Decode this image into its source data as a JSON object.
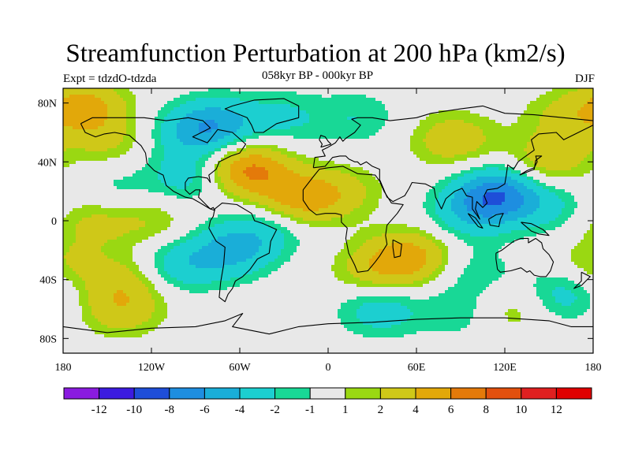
{
  "chart_data": {
    "type": "heatmap",
    "title": "Streamfunction Perturbation at 200 hPa (km2/s)",
    "left_label": "Expt = tdzdO-tdzda",
    "subtitle": "058kyr BP - 000kyr BP",
    "right_label": "DJF",
    "x_ticks": [
      "180",
      "120W",
      "60W",
      "0",
      "60E",
      "120E",
      "180"
    ],
    "x_tick_lons": [
      -180,
      -120,
      -60,
      0,
      60,
      120,
      180
    ],
    "y_ticks": [
      "80N",
      "40N",
      "0",
      "40S",
      "80S"
    ],
    "y_tick_lats": [
      80,
      40,
      0,
      -40,
      -80
    ],
    "xlim": [
      -180,
      180
    ],
    "ylim": [
      -90,
      90
    ],
    "colorbar": {
      "labels": [
        "-12",
        "-10",
        "-8",
        "-6",
        "-4",
        "-2",
        "-1",
        "1",
        "2",
        "4",
        "6",
        "8",
        "10",
        "12"
      ],
      "colors": [
        "#8a1be0",
        "#3c1be0",
        "#1e4ed8",
        "#1e8ee0",
        "#1aaed8",
        "#1ccfd0",
        "#18d896",
        "#e8e8e8",
        "#9ad812",
        "#cfc818",
        "#e2a80a",
        "#e47a0a",
        "#e2500e",
        "#e02020",
        "#e00000"
      ]
    },
    "anomalies": [
      {
        "lon": -165,
        "lat": 78,
        "value": 4.5
      },
      {
        "lon": -150,
        "lat": 55,
        "value": 2.2
      },
      {
        "lon": -145,
        "lat": 20,
        "value": -1.6
      },
      {
        "lon": -160,
        "lat": 0,
        "value": 2.4
      },
      {
        "lon": -120,
        "lat": 0,
        "value": 2.0
      },
      {
        "lon": -95,
        "lat": 60,
        "value": -2.6
      },
      {
        "lon": -75,
        "lat": 65,
        "value": -4.6
      },
      {
        "lon": -95,
        "lat": 30,
        "value": -3.0
      },
      {
        "lon": -55,
        "lat": 35,
        "value": 6.5
      },
      {
        "lon": -30,
        "lat": 70,
        "value": -2.2
      },
      {
        "lon": 20,
        "lat": 70,
        "value": -1.9
      },
      {
        "lon": -20,
        "lat": 15,
        "value": 5.0
      },
      {
        "lon": 10,
        "lat": 20,
        "value": 2.2
      },
      {
        "lon": -65,
        "lat": -20,
        "value": -4.2
      },
      {
        "lon": -100,
        "lat": -30,
        "value": -3.2
      },
      {
        "lon": -40,
        "lat": -5,
        "value": -2.4
      },
      {
        "lon": -140,
        "lat": -40,
        "value": 2.4
      },
      {
        "lon": -140,
        "lat": -60,
        "value": 3.2
      },
      {
        "lon": 55,
        "lat": -25,
        "value": 5.0
      },
      {
        "lon": 30,
        "lat": -35,
        "value": 2.5
      },
      {
        "lon": 35,
        "lat": -60,
        "value": -3.2
      },
      {
        "lon": 90,
        "lat": -62,
        "value": -1.8
      },
      {
        "lon": 115,
        "lat": 18,
        "value": -7.0
      },
      {
        "lon": 95,
        "lat": 5,
        "value": -3.0
      },
      {
        "lon": 150,
        "lat": 10,
        "value": -2.2
      },
      {
        "lon": 85,
        "lat": 55,
        "value": 3.4
      },
      {
        "lon": 150,
        "lat": 40,
        "value": 3.3
      },
      {
        "lon": 160,
        "lat": 70,
        "value": 2.2
      },
      {
        "lon": 100,
        "lat": -35,
        "value": -1.7
      },
      {
        "lon": 160,
        "lat": -50,
        "value": -3.0
      },
      {
        "lon": 125,
        "lat": -60,
        "value": 2.0
      },
      {
        "lon": 180,
        "lat": -30,
        "value": 2.0
      }
    ],
    "coastlines": [
      [
        [
          -168,
          66
        ],
        [
          -160,
          70
        ],
        [
          -140,
          70
        ],
        [
          -125,
          70
        ],
        [
          -110,
          68
        ],
        [
          -95,
          70
        ],
        [
          -85,
          68
        ],
        [
          -80,
          63
        ],
        [
          -92,
          57
        ],
        [
          -82,
          53
        ],
        [
          -78,
          58
        ],
        [
          -75,
          62
        ],
        [
          -65,
          60
        ],
        [
          -56,
          52
        ],
        [
          -60,
          46
        ],
        [
          -66,
          44
        ],
        [
          -70,
          42
        ],
        [
          -74,
          40
        ],
        [
          -76,
          35
        ],
        [
          -81,
          31
        ],
        [
          -80,
          26
        ],
        [
          -82,
          29
        ],
        [
          -88,
          30
        ],
        [
          -95,
          29
        ],
        [
          -97,
          26
        ],
        [
          -97,
          21
        ],
        [
          -94,
          18
        ],
        [
          -90,
          21
        ],
        [
          -87,
          21
        ],
        [
          -88,
          16
        ],
        [
          -83,
          11
        ],
        [
          -80,
          8
        ],
        [
          -78,
          9
        ],
        [
          -77,
          7
        ],
        [
          -80,
          8
        ],
        [
          -85,
          11
        ],
        [
          -92,
          15
        ],
        [
          -97,
          16
        ],
        [
          -105,
          20
        ],
        [
          -110,
          24
        ],
        [
          -112,
          31
        ],
        [
          -118,
          34
        ],
        [
          -123,
          39
        ],
        [
          -124,
          46
        ],
        [
          -127,
          51
        ],
        [
          -135,
          58
        ],
        [
          -145,
          60
        ],
        [
          -152,
          59
        ],
        [
          -158,
          57
        ],
        [
          -165,
          60
        ],
        [
          -168,
          66
        ]
      ],
      [
        [
          -77,
          8
        ],
        [
          -72,
          12
        ],
        [
          -62,
          11
        ],
        [
          -52,
          5
        ],
        [
          -50,
          0
        ],
        [
          -44,
          -2
        ],
        [
          -35,
          -6
        ],
        [
          -39,
          -14
        ],
        [
          -40,
          -22
        ],
        [
          -48,
          -26
        ],
        [
          -53,
          -33
        ],
        [
          -58,
          -38
        ],
        [
          -63,
          -41
        ],
        [
          -65,
          -46
        ],
        [
          -68,
          -50
        ],
        [
          -70,
          -55
        ],
        [
          -74,
          -52
        ],
        [
          -73,
          -42
        ],
        [
          -71,
          -30
        ],
        [
          -70,
          -18
        ],
        [
          -76,
          -14
        ],
        [
          -81,
          -5
        ],
        [
          -80,
          0
        ],
        [
          -78,
          3
        ],
        [
          -77,
          8
        ]
      ],
      [
        [
          -17,
          21
        ],
        [
          -10,
          30
        ],
        [
          -6,
          35
        ],
        [
          0,
          36
        ],
        [
          10,
          37
        ],
        [
          20,
          32
        ],
        [
          32,
          31
        ],
        [
          35,
          27
        ],
        [
          38,
          20
        ],
        [
          43,
          12
        ],
        [
          51,
          11
        ],
        [
          47,
          5
        ],
        [
          40,
          -3
        ],
        [
          39,
          -10
        ],
        [
          40,
          -16
        ],
        [
          35,
          -24
        ],
        [
          32,
          -28
        ],
        [
          27,
          -34
        ],
        [
          20,
          -35
        ],
        [
          18,
          -30
        ],
        [
          14,
          -22
        ],
        [
          12,
          -12
        ],
        [
          13,
          -5
        ],
        [
          9,
          -1
        ],
        [
          9,
          4
        ],
        [
          5,
          5
        ],
        [
          -2,
          5
        ],
        [
          -8,
          4
        ],
        [
          -13,
          8
        ],
        [
          -17,
          14
        ],
        [
          -17,
          21
        ]
      ],
      [
        [
          -10,
          36
        ],
        [
          -9,
          43
        ],
        [
          -2,
          44
        ],
        [
          -4,
          48
        ],
        [
          0,
          50
        ],
        [
          5,
          53
        ],
        [
          8,
          57
        ],
        [
          10,
          54
        ],
        [
          12,
          56
        ],
        [
          18,
          60
        ],
        [
          22,
          65
        ],
        [
          16,
          69
        ],
        [
          20,
          70
        ],
        [
          30,
          70
        ],
        [
          42,
          68
        ],
        [
          60,
          70
        ],
        [
          70,
          73
        ],
        [
          90,
          76
        ],
        [
          105,
          78
        ],
        [
          120,
          73
        ],
        [
          140,
          72
        ],
        [
          160,
          70
        ],
        [
          180,
          68
        ],
        [
          180,
          65
        ],
        [
          170,
          60
        ],
        [
          160,
          55
        ],
        [
          155,
          60
        ],
        [
          143,
          59
        ],
        [
          138,
          55
        ],
        [
          140,
          48
        ],
        [
          133,
          43
        ],
        [
          129,
          40
        ],
        [
          126,
          35
        ],
        [
          122,
          38
        ],
        [
          121,
          31
        ],
        [
          120,
          25
        ],
        [
          115,
          22
        ],
        [
          108,
          21
        ],
        [
          106,
          17
        ],
        [
          108,
          12
        ],
        [
          105,
          9
        ],
        [
          101,
          13
        ],
        [
          100,
          8
        ],
        [
          103,
          1
        ],
        [
          98,
          8
        ],
        [
          98,
          16
        ],
        [
          94,
          17
        ],
        [
          91,
          22
        ],
        [
          86,
          20
        ],
        [
          80,
          15
        ],
        [
          77,
          8
        ],
        [
          73,
          16
        ],
        [
          72,
          22
        ],
        [
          66,
          25
        ],
        [
          57,
          26
        ],
        [
          55,
          22
        ],
        [
          52,
          17
        ],
        [
          44,
          13
        ],
        [
          40,
          16
        ],
        [
          35,
          28
        ],
        [
          35,
          35
        ],
        [
          30,
          37
        ],
        [
          26,
          40
        ],
        [
          22,
          38
        ],
        [
          20,
          40
        ],
        [
          18,
          40
        ],
        [
          14,
          42
        ],
        [
          12,
          44
        ],
        [
          8,
          44
        ],
        [
          3,
          43
        ],
        [
          -2,
          37
        ],
        [
          -10,
          36
        ]
      ],
      [
        [
          114,
          -22
        ],
        [
          118,
          -20
        ],
        [
          126,
          -14
        ],
        [
          131,
          -12
        ],
        [
          136,
          -12
        ],
        [
          136,
          -15
        ],
        [
          141,
          -12
        ],
        [
          145,
          -15
        ],
        [
          146,
          -19
        ],
        [
          150,
          -23
        ],
        [
          153,
          -28
        ],
        [
          151,
          -34
        ],
        [
          148,
          -38
        ],
        [
          144,
          -38
        ],
        [
          140,
          -37
        ],
        [
          137,
          -34
        ],
        [
          135,
          -35
        ],
        [
          131,
          -32
        ],
        [
          124,
          -34
        ],
        [
          117,
          -35
        ],
        [
          115,
          -33
        ],
        [
          114,
          -26
        ],
        [
          114,
          -22
        ]
      ],
      [
        [
          -50,
          60
        ],
        [
          -44,
          60
        ],
        [
          -35,
          66
        ],
        [
          -20,
          70
        ],
        [
          -20,
          78
        ],
        [
          -30,
          83
        ],
        [
          -50,
          82
        ],
        [
          -65,
          78
        ],
        [
          -70,
          76
        ],
        [
          -55,
          70
        ],
        [
          -52,
          65
        ],
        [
          -50,
          60
        ]
      ],
      [
        [
          -5,
          50
        ],
        [
          2,
          52
        ],
        [
          0,
          54
        ],
        [
          -2,
          57
        ],
        [
          -5,
          58
        ],
        [
          -6,
          55
        ],
        [
          -4,
          52
        ],
        [
          -5,
          50
        ]
      ],
      [
        [
          44,
          -13
        ],
        [
          50,
          -16
        ],
        [
          49,
          -24
        ],
        [
          45,
          -25
        ],
        [
          44,
          -18
        ],
        [
          44,
          -13
        ]
      ],
      [
        [
          95,
          5
        ],
        [
          100,
          2
        ],
        [
          105,
          -5
        ],
        [
          102,
          -4
        ],
        [
          98,
          1
        ],
        [
          95,
          5
        ]
      ],
      [
        [
          109,
          1
        ],
        [
          114,
          4
        ],
        [
          119,
          5
        ],
        [
          117,
          1
        ],
        [
          116,
          -4
        ],
        [
          110,
          -3
        ],
        [
          109,
          1
        ]
      ],
      [
        [
          130,
          31
        ],
        [
          135,
          34
        ],
        [
          140,
          36
        ],
        [
          142,
          40
        ],
        [
          141,
          44
        ],
        [
          145,
          44
        ],
        [
          141,
          41
        ],
        [
          140,
          35
        ],
        [
          135,
          33
        ],
        [
          130,
          31
        ]
      ],
      [
        [
          172,
          -35
        ],
        [
          178,
          -38
        ],
        [
          175,
          -41
        ],
        [
          172,
          -44
        ],
        [
          167,
          -46
        ],
        [
          172,
          -41
        ],
        [
          172,
          -35
        ]
      ],
      [
        [
          131,
          -1
        ],
        [
          138,
          -2
        ],
        [
          146,
          -6
        ],
        [
          150,
          -10
        ],
        [
          143,
          -9
        ],
        [
          138,
          -7
        ],
        [
          131,
          -1
        ]
      ],
      [
        [
          -180,
          -72
        ],
        [
          -150,
          -76
        ],
        [
          -120,
          -73
        ],
        [
          -90,
          -72
        ],
        [
          -70,
          -68
        ],
        [
          -58,
          -63
        ],
        [
          -65,
          -72
        ],
        [
          -40,
          -77
        ],
        [
          -20,
          -72
        ],
        [
          0,
          -70
        ],
        [
          30,
          -69
        ],
        [
          60,
          -67
        ],
        [
          90,
          -66
        ],
        [
          120,
          -66
        ],
        [
          150,
          -68
        ],
        [
          165,
          -72
        ],
        [
          180,
          -72
        ]
      ]
    ]
  }
}
